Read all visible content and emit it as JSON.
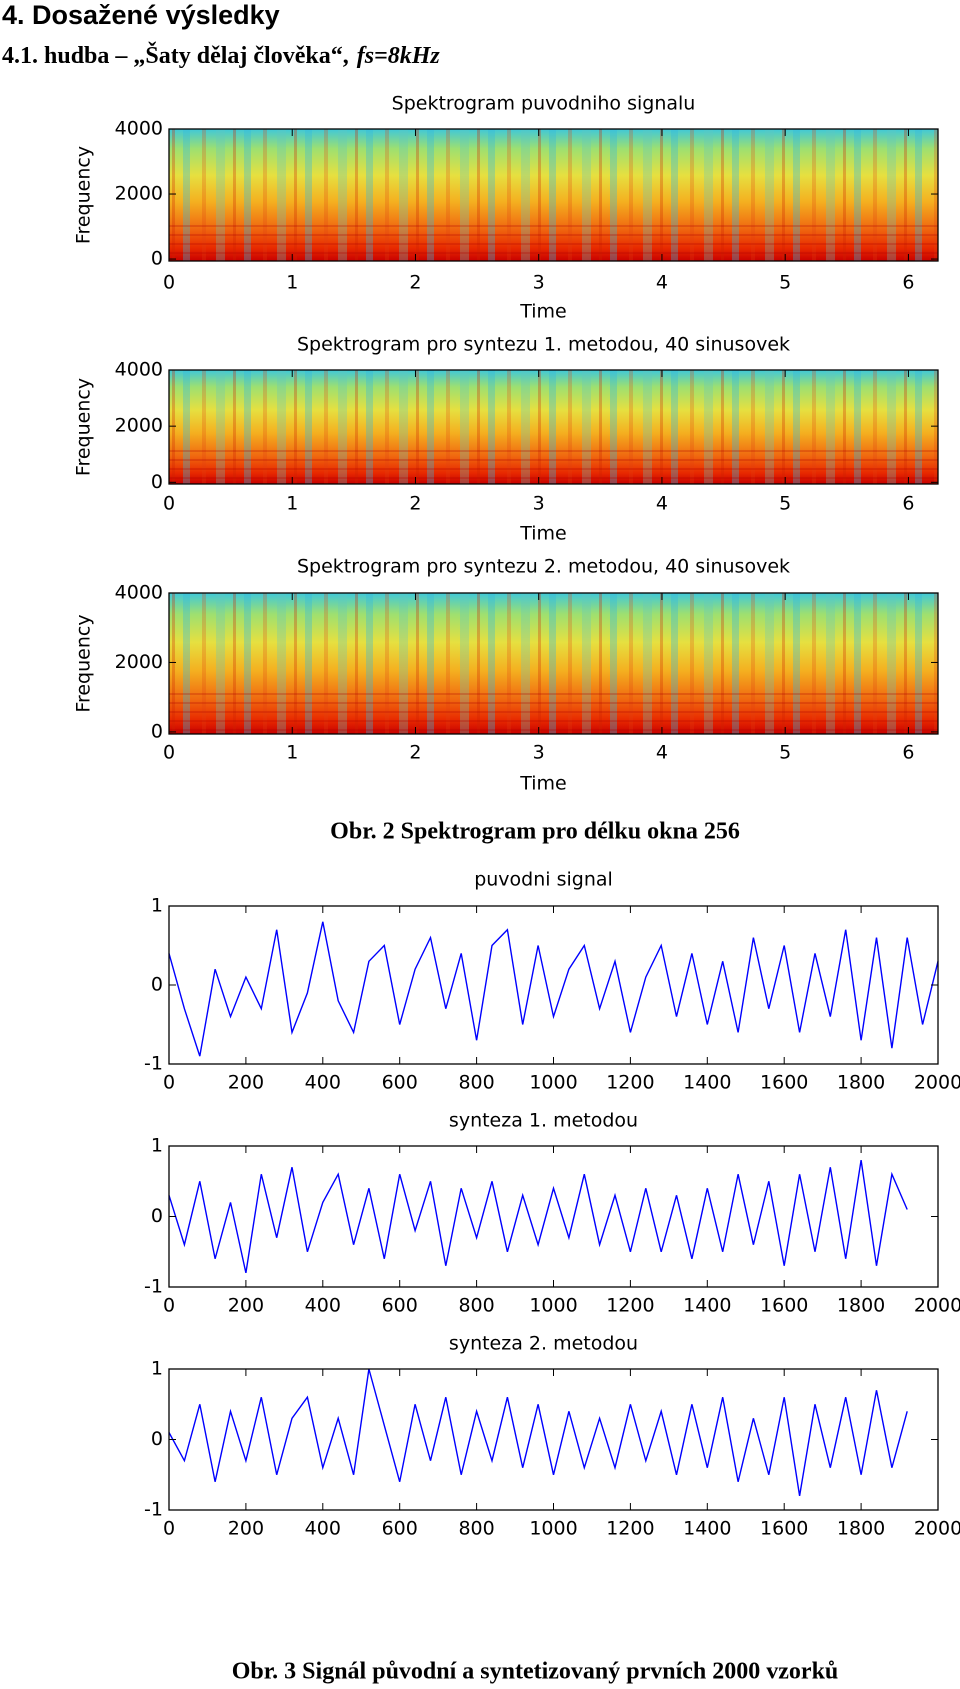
{
  "heading": "4. Dosažené výsledky",
  "subheading": {
    "text": "4.1. hudba – „Šaty dělaj člověka“,",
    "param": "fs=8kHz"
  },
  "captions": [
    "Obr. 2 Spektrogram pro délku okna 256",
    "Obr. 3  Signál původní a syntetizovaný prvních 2000 vzorků"
  ],
  "chart_data": [
    {
      "type": "spectrogram",
      "title": "Spektrogram puvodniho signalu",
      "xlabel": "Time",
      "ylabel": "Frequency",
      "xlim": [
        0,
        6.24
      ],
      "ylim": [
        -60,
        4000
      ],
      "xticks": [
        0,
        1,
        2,
        3,
        4,
        5,
        6
      ],
      "yticks": [
        0,
        2000,
        4000
      ]
    },
    {
      "type": "spectrogram",
      "title": "Spektrogram pro syntezu 1. metodou,  40 sinusovek",
      "xlabel": "Time",
      "ylabel": "Frequency",
      "xlim": [
        0,
        6.24
      ],
      "ylim": [
        -60,
        4000
      ],
      "xticks": [
        0,
        1,
        2,
        3,
        4,
        5,
        6
      ],
      "yticks": [
        0,
        2000,
        4000
      ]
    },
    {
      "type": "spectrogram",
      "title": "Spektrogram pro syntezu 2. metodou,  40 sinusovek",
      "xlabel": "Time",
      "ylabel": "Frequency",
      "xlim": [
        0,
        6.24
      ],
      "ylim": [
        -60,
        4000
      ],
      "xticks": [
        0,
        1,
        2,
        3,
        4,
        5,
        6
      ],
      "yticks": [
        0,
        2000,
        4000
      ]
    },
    {
      "type": "line",
      "title": "puvodni signal",
      "color": "#0000ff",
      "xlim": [
        0,
        2000
      ],
      "ylim": [
        -1,
        1
      ],
      "xticks": [
        0,
        200,
        400,
        600,
        800,
        1000,
        1200,
        1400,
        1600,
        1800,
        2000
      ],
      "yticks": [
        -1,
        0,
        1
      ],
      "x": [
        0,
        40,
        80,
        120,
        160,
        200,
        240,
        280,
        320,
        360,
        400,
        440,
        480,
        520,
        560,
        600,
        640,
        680,
        720,
        760,
        800,
        840,
        880,
        920,
        960,
        1000,
        1040,
        1080,
        1120,
        1160,
        1200,
        1240,
        1280,
        1320,
        1360,
        1400,
        1440,
        1480,
        1520,
        1560,
        1600,
        1640,
        1680,
        1720,
        1760,
        1800,
        1840,
        1880,
        1920,
        1960,
        2000
      ],
      "values": [
        0.4,
        -0.3,
        -0.9,
        0.2,
        -0.4,
        0.1,
        -0.3,
        0.7,
        -0.6,
        -0.1,
        0.8,
        -0.2,
        -0.6,
        0.3,
        0.5,
        -0.5,
        0.2,
        0.6,
        -0.3,
        0.4,
        -0.7,
        0.5,
        0.7,
        -0.5,
        0.5,
        -0.4,
        0.2,
        0.5,
        -0.3,
        0.3,
        -0.6,
        0.1,
        0.5,
        -0.4,
        0.4,
        -0.5,
        0.3,
        -0.6,
        0.6,
        -0.3,
        0.5,
        -0.6,
        0.4,
        -0.4,
        0.7,
        -0.7,
        0.6,
        -0.8,
        0.6,
        -0.5,
        0.3
      ]
    },
    {
      "type": "line",
      "title": "synteza 1. metodou",
      "color": "#0000ff",
      "xlim": [
        0,
        2000
      ],
      "ylim": [
        -1,
        1
      ],
      "xticks": [
        0,
        200,
        400,
        600,
        800,
        1000,
        1200,
        1400,
        1600,
        1800,
        2000
      ],
      "yticks": [
        -1,
        0,
        1
      ],
      "x": [
        0,
        40,
        80,
        120,
        160,
        200,
        240,
        280,
        320,
        360,
        400,
        440,
        480,
        520,
        560,
        600,
        640,
        680,
        720,
        760,
        800,
        840,
        880,
        920,
        960,
        1000,
        1040,
        1080,
        1120,
        1160,
        1200,
        1240,
        1280,
        1320,
        1360,
        1400,
        1440,
        1480,
        1520,
        1560,
        1600,
        1640,
        1680,
        1720,
        1760,
        1800,
        1840,
        1880,
        1920
      ],
      "values": [
        0.3,
        -0.4,
        0.5,
        -0.6,
        0.2,
        -0.8,
        0.6,
        -0.3,
        0.7,
        -0.5,
        0.2,
        0.6,
        -0.4,
        0.4,
        -0.6,
        0.6,
        -0.2,
        0.5,
        -0.7,
        0.4,
        -0.3,
        0.5,
        -0.5,
        0.3,
        -0.4,
        0.4,
        -0.3,
        0.6,
        -0.4,
        0.3,
        -0.5,
        0.4,
        -0.5,
        0.3,
        -0.6,
        0.4,
        -0.5,
        0.6,
        -0.4,
        0.5,
        -0.7,
        0.6,
        -0.5,
        0.7,
        -0.6,
        0.8,
        -0.7,
        0.6,
        0.1
      ]
    },
    {
      "type": "line",
      "title": "synteza 2. metodou",
      "color": "#0000ff",
      "xlim": [
        0,
        2000
      ],
      "ylim": [
        -1,
        1
      ],
      "xticks": [
        0,
        200,
        400,
        600,
        800,
        1000,
        1200,
        1400,
        1600,
        1800,
        2000
      ],
      "yticks": [
        -1,
        0,
        1
      ],
      "x": [
        0,
        40,
        80,
        120,
        160,
        200,
        240,
        280,
        320,
        360,
        400,
        440,
        480,
        520,
        560,
        600,
        640,
        680,
        720,
        760,
        800,
        840,
        880,
        920,
        960,
        1000,
        1040,
        1080,
        1120,
        1160,
        1200,
        1240,
        1280,
        1320,
        1360,
        1400,
        1440,
        1480,
        1520,
        1560,
        1600,
        1640,
        1680,
        1720,
        1760,
        1800,
        1840,
        1880,
        1920
      ],
      "values": [
        0.1,
        -0.3,
        0.5,
        -0.6,
        0.4,
        -0.3,
        0.6,
        -0.5,
        0.3,
        0.6,
        -0.4,
        0.3,
        -0.5,
        1.0,
        0.2,
        -0.6,
        0.5,
        -0.3,
        0.6,
        -0.5,
        0.4,
        -0.3,
        0.6,
        -0.4,
        0.5,
        -0.5,
        0.4,
        -0.4,
        0.3,
        -0.4,
        0.5,
        -0.3,
        0.4,
        -0.5,
        0.5,
        -0.4,
        0.6,
        -0.6,
        0.3,
        -0.5,
        0.6,
        -0.8,
        0.5,
        -0.4,
        0.6,
        -0.5,
        0.7,
        -0.4,
        0.4
      ]
    }
  ]
}
